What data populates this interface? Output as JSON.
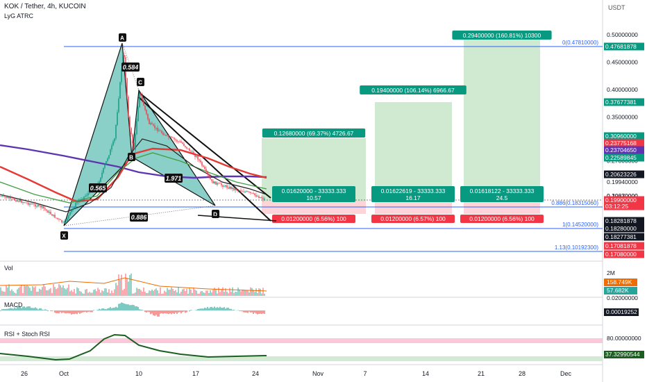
{
  "header": {
    "title": "KOK / Tether, 4h, KUCOIN",
    "indicator": "LyG ATRC",
    "currency": "USDT"
  },
  "panes": {
    "vol": "Vol",
    "macd": "MACD",
    "rsi": "RSI + Stoch RSI"
  },
  "colors": {
    "green": "#089981",
    "red": "#f23645",
    "blue": "#2962ff",
    "harmonic": "#2aa89a",
    "target_green": "#c8e6c9",
    "target_red": "#ffcdd2",
    "ema_red": "#e53935",
    "ema_green": "#43a047",
    "ema_purple": "#5e35b1"
  },
  "chart_data": {
    "type": "candlestick",
    "symbol": "KOK / Tether",
    "interval": "4h",
    "exchange": "KUCOIN",
    "y_axis": {
      "scale": "price",
      "ticks": [
        "0.50000000",
        "0.45000000",
        "0.40000000",
        "0.35000000",
        "0.30000000",
        "0.27000000",
        "0.20630000",
        "0.20230000",
        "0.19940000",
        "0.19270000"
      ]
    },
    "x_axis": {
      "ticks": [
        "26",
        "Oct",
        "10",
        "17",
        "24",
        "Nov",
        "7",
        "14",
        "21",
        "28",
        "Dec"
      ]
    },
    "price_badges": [
      {
        "value": "0.47681878",
        "color": "green"
      },
      {
        "value": "0.37677381",
        "color": "green"
      },
      {
        "value": "0.30960000",
        "color": "green"
      },
      {
        "value": "0.23775168",
        "color": "red"
      },
      {
        "value": "0.23704650",
        "color": "purple"
      },
      {
        "value": "0.22589845",
        "color": "green"
      },
      {
        "value": "0.20623226",
        "color": "black"
      },
      {
        "value": "0.19900000",
        "sub": "03:12:25",
        "color": "red"
      },
      {
        "value": "0.18281878",
        "color": "black"
      },
      {
        "value": "0.18280000",
        "color": "black"
      },
      {
        "value": "0.18277381",
        "color": "black"
      },
      {
        "value": "0.17081878",
        "color": "red"
      },
      {
        "value": "0.17080000",
        "color": "red"
      }
    ],
    "fib_levels": [
      {
        "label": "0(0.47810000)",
        "price": 0.4781
      },
      {
        "label": "0.886(0.18315060)",
        "price": 0.18315
      },
      {
        "label": "1(0.14520000)",
        "price": 0.1452
      },
      {
        "label": "1.13(0.10192300)",
        "price": 0.10192
      }
    ],
    "harmonic": {
      "points": [
        "X",
        "A",
        "B",
        "C",
        "D"
      ],
      "ratios": [
        "0.565",
        "0.584",
        "1.971",
        "0.886"
      ]
    },
    "targets": [
      {
        "profit": "0.12680000 (69.37%) 4726.67",
        "entry": "0.01620000 - 33333.333",
        "entry_sub": "10.57",
        "stop": "0.01200000 (6.56%) 100"
      },
      {
        "profit": "0.19400000 (106.14%) 6966.67",
        "entry": "0.01622619 - 33333.333",
        "entry_sub": "16.17",
        "stop": "0.01200000 (6.57%) 100"
      },
      {
        "profit": "0.29400000 (160.81%) 10300",
        "entry": "0.01618122 - 33333.333",
        "entry_sub": "24.5",
        "stop": "0.01200000 (6.56%) 100"
      }
    ],
    "volume": {
      "ticks": [
        "2M"
      ],
      "badges": [
        "158.749K",
        "57.682K"
      ]
    },
    "macd": {
      "ticks": [
        "0.02000000"
      ],
      "badges": [
        "0.00019252"
      ]
    },
    "rsi": {
      "ticks": [
        "80.00000000"
      ],
      "badges": [
        "37.32990544"
      ]
    }
  }
}
